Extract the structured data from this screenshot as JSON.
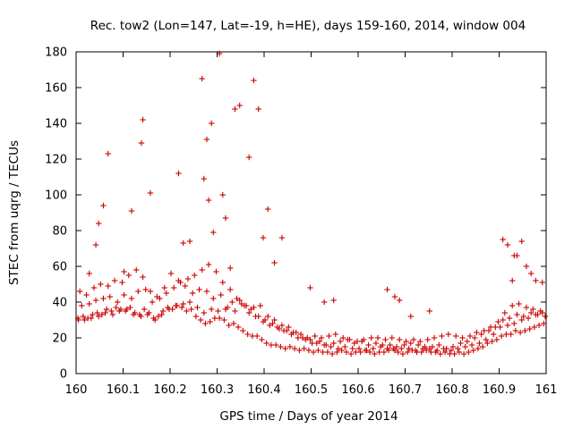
{
  "chart_data": {
    "type": "scatter",
    "title": "Rec. tow2 (Lon=147, Lat=-19, h=HE), days 159-160, 2014, window 004",
    "xlabel": "GPS time / Days of year 2014",
    "ylabel": "STEC from uqrg / TECUs",
    "xlim": [
      160,
      161
    ],
    "ylim": [
      0,
      180
    ],
    "xticks": [
      160,
      160.1,
      160.2,
      160.3,
      160.4,
      160.5,
      160.6,
      160.7,
      160.8,
      160.9,
      161
    ],
    "xtick_labels": [
      "160",
      "160.1",
      "160.2",
      "160.3",
      "160.4",
      "160.5",
      "160.6",
      "160.7",
      "160.8",
      "160.9",
      "161"
    ],
    "yticks": [
      0,
      20,
      40,
      60,
      80,
      100,
      120,
      140,
      160,
      180
    ],
    "ytick_labels": [
      "0",
      "20",
      "40",
      "60",
      "80",
      "100",
      "120",
      "140",
      "160",
      "180"
    ],
    "marker": "+",
    "marker_color": "#cc0000",
    "grid": false,
    "series": [
      {
        "name": "STEC",
        "x": [
          160.005,
          160.015,
          160.025,
          160.035,
          160.045,
          160.055,
          160.065,
          160.075,
          160.085,
          160.095,
          160.105,
          160.115,
          160.125,
          160.135,
          160.145,
          160.155,
          160.165,
          160.175,
          160.185,
          160.195,
          160.205,
          160.215,
          160.225,
          160.235,
          160.245,
          160.255,
          160.265,
          160.275,
          160.285,
          160.295,
          160.305,
          160.315,
          160.325,
          160.335,
          160.345,
          160.355,
          160.365,
          160.375,
          160.385,
          160.395,
          160.405,
          160.415,
          160.425,
          160.435,
          160.445,
          160.455,
          160.465,
          160.475,
          160.485,
          160.495,
          160.505,
          160.515,
          160.525,
          160.535,
          160.545,
          160.555,
          160.565,
          160.575,
          160.585,
          160.595,
          160.605,
          160.615,
          160.625,
          160.635,
          160.645,
          160.655,
          160.665,
          160.675,
          160.685,
          160.695,
          160.705,
          160.715,
          160.725,
          160.735,
          160.745,
          160.755,
          160.765,
          160.775,
          160.785,
          160.795,
          160.805,
          160.815,
          160.825,
          160.835,
          160.845,
          160.855,
          160.865,
          160.875,
          160.885,
          160.895,
          160.905,
          160.915,
          160.925,
          160.935,
          160.945,
          160.955,
          160.965,
          160.975,
          160.985,
          160.995,
          160.008,
          160.022,
          160.038,
          160.052,
          160.068,
          160.082,
          160.098,
          160.112,
          160.128,
          160.142,
          160.158,
          160.172,
          160.188,
          160.202,
          160.218,
          160.232,
          160.248,
          160.262,
          160.278,
          160.292,
          160.308,
          160.322,
          160.338,
          160.352,
          160.368,
          160.382,
          160.398,
          160.412,
          160.428,
          160.442,
          160.458,
          160.472,
          160.488,
          160.502,
          160.518,
          160.532,
          160.548,
          160.562,
          160.578,
          160.592,
          160.608,
          160.622,
          160.638,
          160.652,
          160.668,
          160.682,
          160.698,
          160.712,
          160.728,
          160.742,
          160.758,
          160.772,
          160.788,
          160.802,
          160.818,
          160.832,
          160.848,
          160.862,
          160.878,
          160.892,
          160.908,
          160.922,
          160.938,
          160.952,
          160.968,
          160.982,
          160.998,
          160.012,
          160.028,
          160.042,
          160.058,
          160.072,
          160.088,
          160.102,
          160.118,
          160.132,
          160.148,
          160.162,
          160.178,
          160.192,
          160.208,
          160.222,
          160.238,
          160.252,
          160.268,
          160.282,
          160.298,
          160.312,
          160.328,
          160.342,
          160.358,
          160.372,
          160.388,
          160.402,
          160.418,
          160.432,
          160.448,
          160.462,
          160.478,
          160.492,
          160.508,
          160.522,
          160.538,
          160.552,
          160.568,
          160.582,
          160.598,
          160.612,
          160.628,
          160.642,
          160.658,
          160.672,
          160.688,
          160.702,
          160.718,
          160.732,
          160.748,
          160.762,
          160.778,
          160.792,
          160.808,
          160.822,
          160.838,
          160.852,
          160.868,
          160.882,
          160.898,
          160.912,
          160.928,
          160.942,
          160.958,
          160.972,
          160.988,
          160.004,
          160.018,
          160.032,
          160.048,
          160.062,
          160.078,
          160.092,
          160.108,
          160.122,
          160.138,
          160.152,
          160.168,
          160.182,
          160.198,
          160.212,
          160.228,
          160.242,
          160.258,
          160.272,
          160.288,
          160.302,
          160.318,
          160.332,
          160.348,
          160.362,
          160.378,
          160.392,
          160.408,
          160.422,
          160.438,
          160.452,
          160.468,
          160.482,
          160.498,
          160.512,
          160.528,
          160.542,
          160.558,
          160.572,
          160.588,
          160.602,
          160.618,
          160.632,
          160.648,
          160.662,
          160.678,
          160.692,
          160.708,
          160.722,
          160.738,
          160.752,
          160.768,
          160.782,
          160.798,
          160.812,
          160.828,
          160.842,
          160.858,
          160.872,
          160.888,
          160.902,
          160.918,
          160.932,
          160.948,
          160.962,
          160.978,
          160.992,
          160.058,
          160.068,
          160.142,
          160.139,
          160.228,
          160.268,
          160.278,
          160.288,
          160.305,
          160.312,
          160.338,
          160.348,
          160.368,
          160.378,
          160.388,
          160.398,
          160.408,
          160.422,
          160.438,
          160.282,
          160.272,
          160.292,
          160.102,
          160.118,
          160.158,
          160.048,
          160.042,
          160.028,
          160.218,
          160.242,
          160.908,
          160.918,
          160.932,
          160.938,
          160.948,
          160.928,
          160.958,
          160.968,
          160.978,
          160.992,
          160.498,
          160.528,
          160.548,
          160.678,
          160.662,
          160.688,
          160.712,
          160.752,
          160.318,
          160.328
        ],
        "y": [
          30,
          32,
          31,
          33,
          34,
          33,
          36,
          35,
          37,
          36,
          35,
          37,
          34,
          33,
          36,
          34,
          31,
          32,
          35,
          37,
          36,
          38,
          37,
          35,
          36,
          32,
          30,
          28,
          29,
          31,
          31,
          30,
          27,
          28,
          26,
          24,
          22,
          21,
          21,
          19,
          17,
          16,
          16,
          15,
          14,
          15,
          14,
          13,
          14,
          13,
          12,
          13,
          12,
          12,
          11,
          12,
          13,
          12,
          11,
          12,
          12,
          13,
          12,
          11,
          12,
          12,
          13,
          14,
          12,
          11,
          12,
          13,
          12,
          12,
          13,
          12,
          12,
          11,
          12,
          11,
          11,
          12,
          11,
          12,
          13,
          14,
          15,
          17,
          18,
          19,
          21,
          22,
          22,
          24,
          23,
          24,
          25,
          26,
          27,
          28,
          46,
          44,
          48,
          50,
          49,
          52,
          51,
          55,
          58,
          54,
          46,
          43,
          48,
          56,
          52,
          49,
          45,
          47,
          46,
          42,
          44,
          37,
          35,
          39,
          34,
          32,
          29,
          27,
          26,
          24,
          22,
          20,
          19,
          17,
          18,
          16,
          17,
          18,
          19,
          17,
          18,
          16,
          17,
          16,
          16,
          15,
          16,
          17,
          16,
          15,
          15,
          16,
          14,
          15,
          17,
          18,
          20,
          22,
          24,
          26,
          30,
          31,
          33,
          32,
          34,
          33,
          32,
          38,
          39,
          41,
          42,
          43,
          40,
          44,
          42,
          46,
          47,
          40,
          42,
          45,
          48,
          51,
          53,
          55,
          58,
          61,
          57,
          51,
          47,
          42,
          38,
          36,
          32,
          30,
          28,
          25,
          24,
          23,
          22,
          20,
          21,
          20,
          21,
          22,
          20,
          19,
          18,
          19,
          20,
          20,
          19,
          20,
          19,
          18,
          19,
          18,
          19,
          20,
          21,
          22,
          21,
          20,
          21,
          23,
          24,
          26,
          29,
          34,
          38,
          39,
          37,
          36,
          35,
          31,
          30,
          31,
          32,
          34,
          33,
          35,
          36,
          33,
          32,
          33,
          30,
          33,
          36,
          38,
          39,
          40,
          37,
          34,
          36,
          35,
          36,
          40,
          41,
          38,
          37,
          38,
          32,
          30,
          27,
          26,
          23,
          20,
          19,
          17,
          16,
          15,
          14,
          15,
          14,
          14,
          13,
          14,
          15,
          14,
          13,
          14,
          14,
          13,
          14,
          14,
          13,
          14,
          13,
          14,
          15,
          16,
          17,
          19,
          22,
          26,
          27,
          28,
          30,
          31,
          33,
          34,
          94,
          123,
          142,
          129,
          73,
          165,
          131,
          140,
          179,
          100,
          148,
          150,
          121,
          164,
          148,
          76,
          92,
          62,
          76,
          97,
          109,
          79,
          57,
          91,
          101,
          84,
          72,
          56,
          112,
          74,
          75,
          72,
          66,
          66,
          74,
          52,
          60,
          56,
          52,
          51,
          48,
          40,
          41,
          43,
          47,
          41,
          32,
          35,
          87,
          59
        ]
      }
    ]
  }
}
